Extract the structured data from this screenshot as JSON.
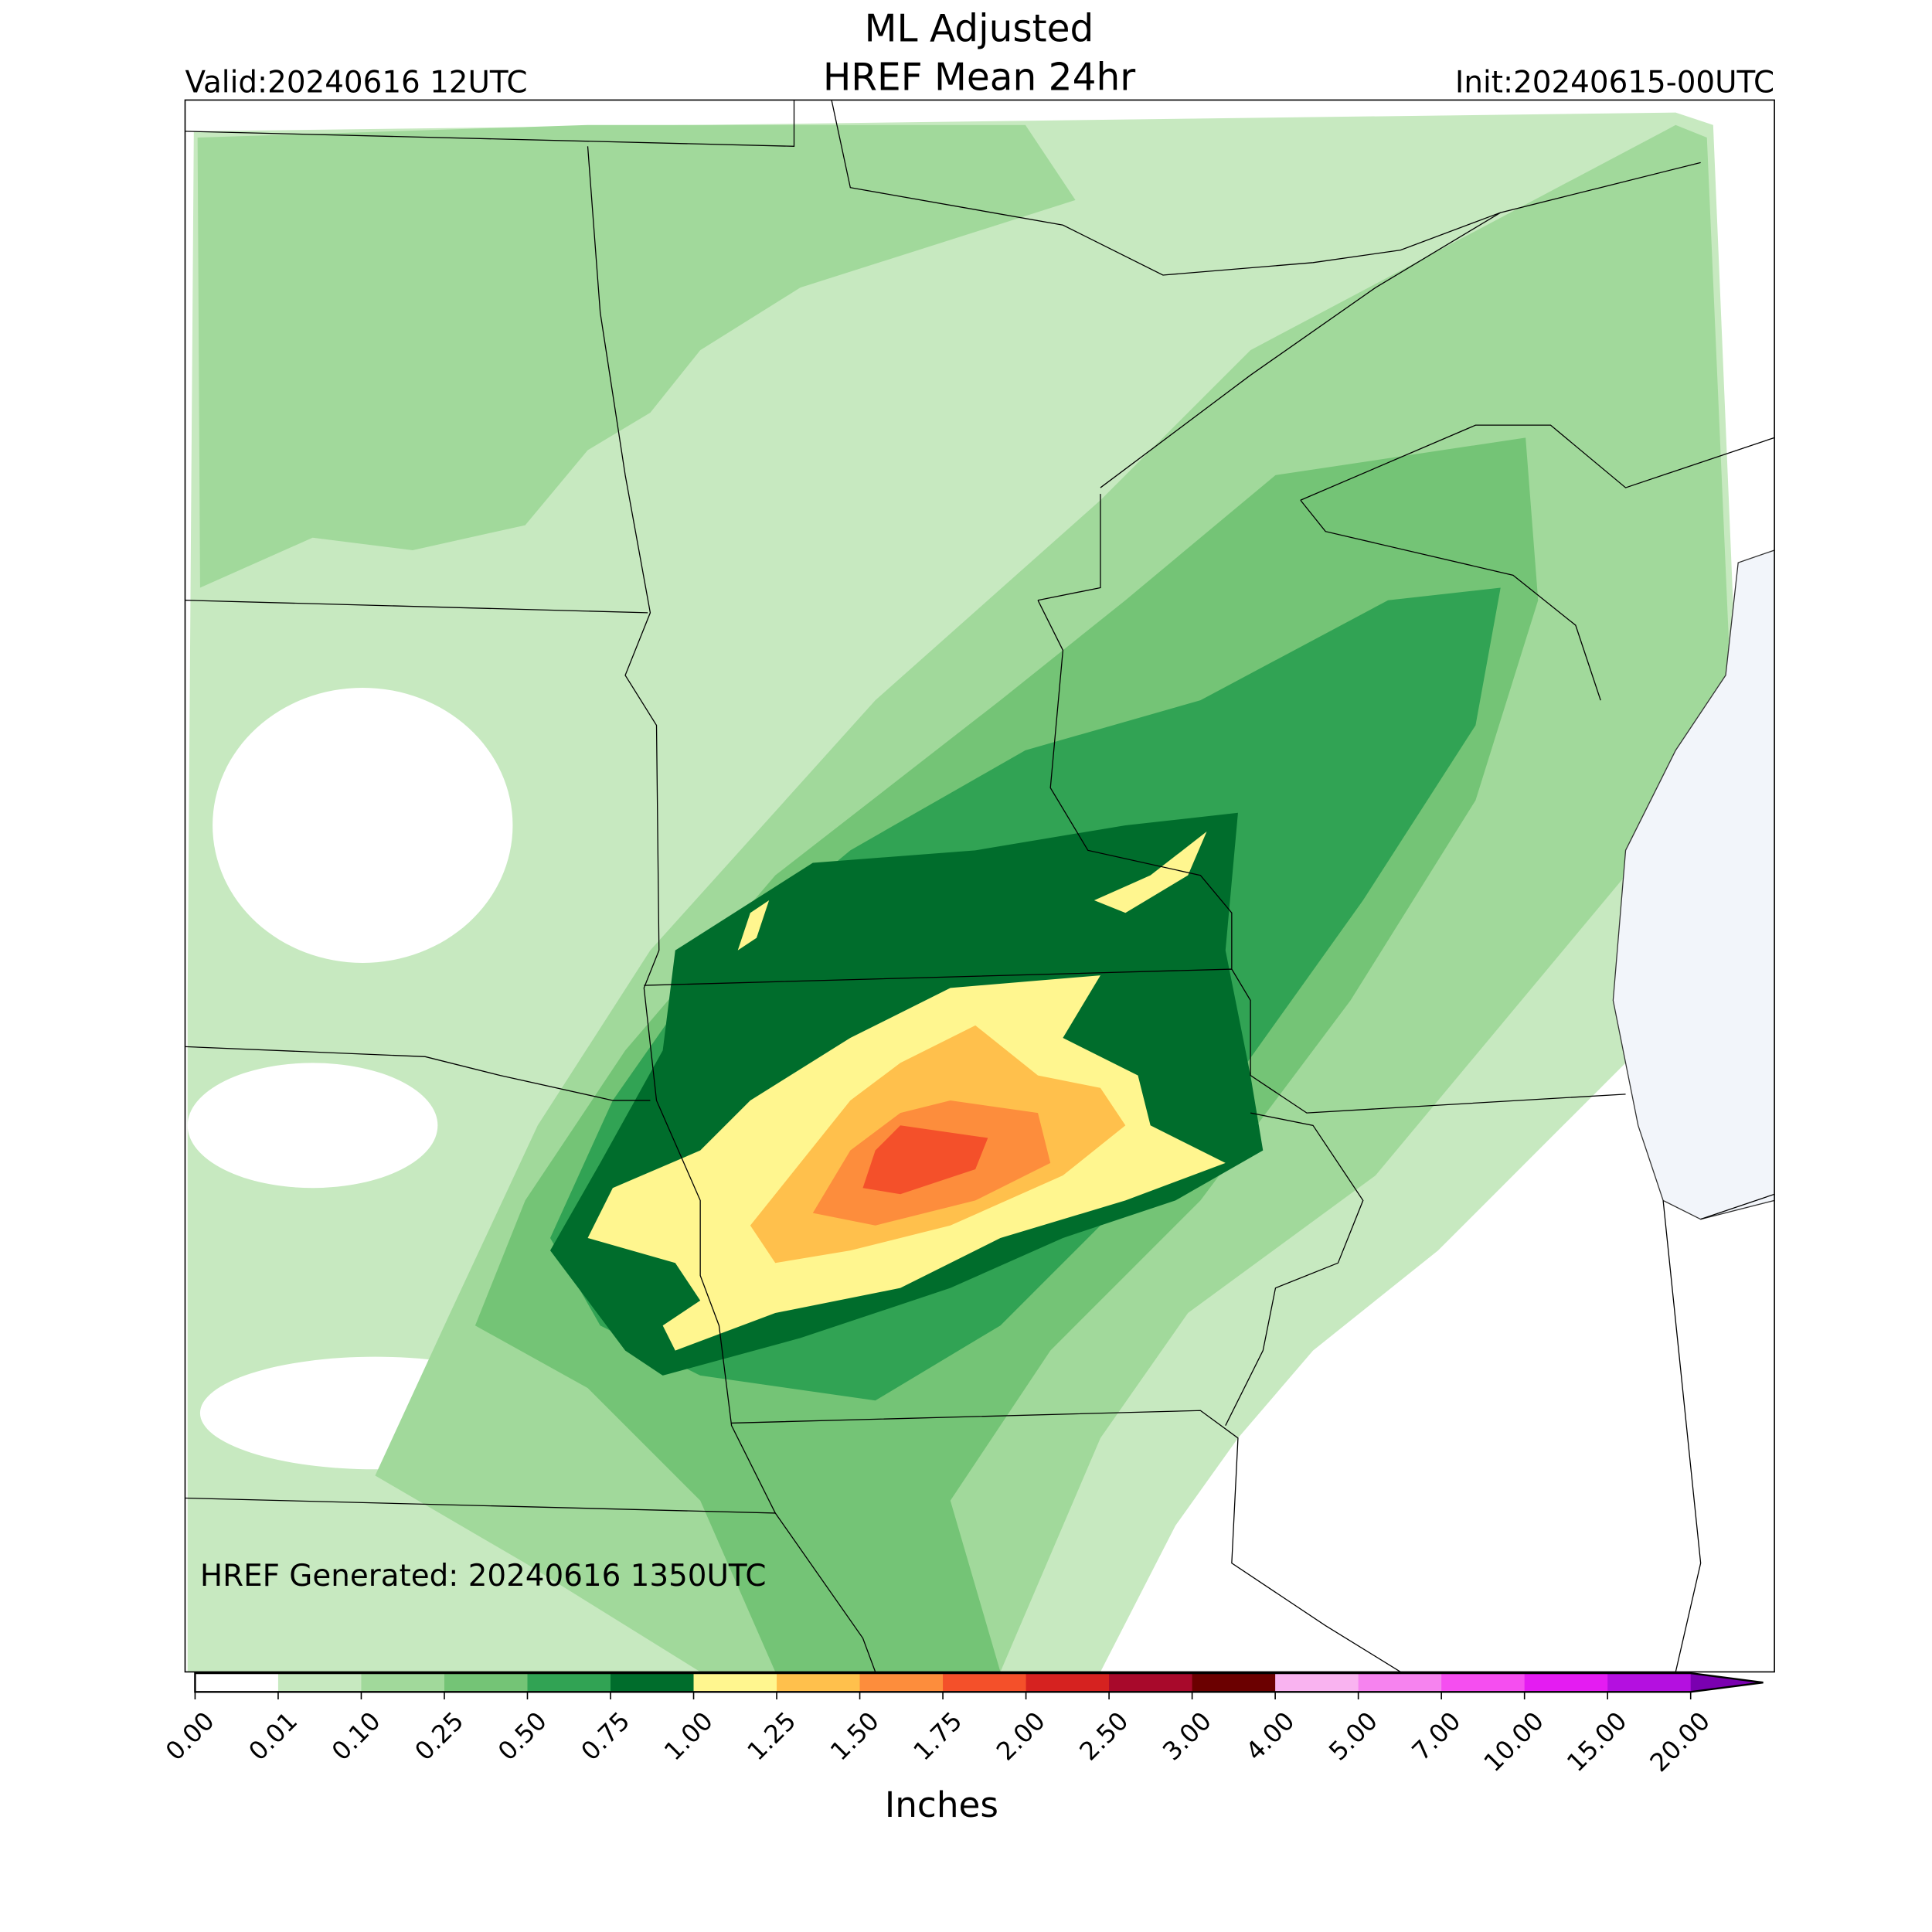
{
  "header": {
    "title_lines": [
      "ML Adjusted",
      "HREF Mean 24hr"
    ],
    "valid": "Valid:20240616 12UTC",
    "init": "Init:20240615-00UTC"
  },
  "footer_note": "HREF Generated: 20240616 1350UTC",
  "colorbar": {
    "label": "Inches",
    "ticks": [
      {
        "value": 0,
        "label": "0.00"
      },
      {
        "value": 0.01,
        "label": "0.01"
      },
      {
        "value": 0.1,
        "label": "0.10"
      },
      {
        "value": 0.25,
        "label": "0.25"
      },
      {
        "value": 0.5,
        "label": "0.50"
      },
      {
        "value": 0.75,
        "label": "0.75"
      },
      {
        "value": 1,
        "label": "1.00"
      },
      {
        "value": 1.25,
        "label": "1.25"
      },
      {
        "value": 1.5,
        "label": "1.50"
      },
      {
        "value": 1.75,
        "label": "1.75"
      },
      {
        "value": 2,
        "label": "2.00"
      },
      {
        "value": 2.5,
        "label": "2.50"
      },
      {
        "value": 3,
        "label": "3.00"
      },
      {
        "value": 4,
        "label": "4.00"
      },
      {
        "value": 5,
        "label": "5.00"
      },
      {
        "value": 7,
        "label": "7.00"
      },
      {
        "value": 10,
        "label": "10.00"
      },
      {
        "value": 15,
        "label": "15.00"
      },
      {
        "value": 20,
        "label": "20.00"
      }
    ],
    "colors": [
      "#ffffff",
      "#c7e9c0",
      "#a1d99b",
      "#74c476",
      "#31a354",
      "#006d2c",
      "#fff68f",
      "#ffc04c",
      "#fd8d3c",
      "#f4502a",
      "#d62220",
      "#a8092b",
      "#6b0000",
      "#f9b3f0",
      "#f683ef",
      "#f54ef0",
      "#e41cf2",
      "#b410e0"
    ],
    "extend_color": "#7a00b0"
  }
}
